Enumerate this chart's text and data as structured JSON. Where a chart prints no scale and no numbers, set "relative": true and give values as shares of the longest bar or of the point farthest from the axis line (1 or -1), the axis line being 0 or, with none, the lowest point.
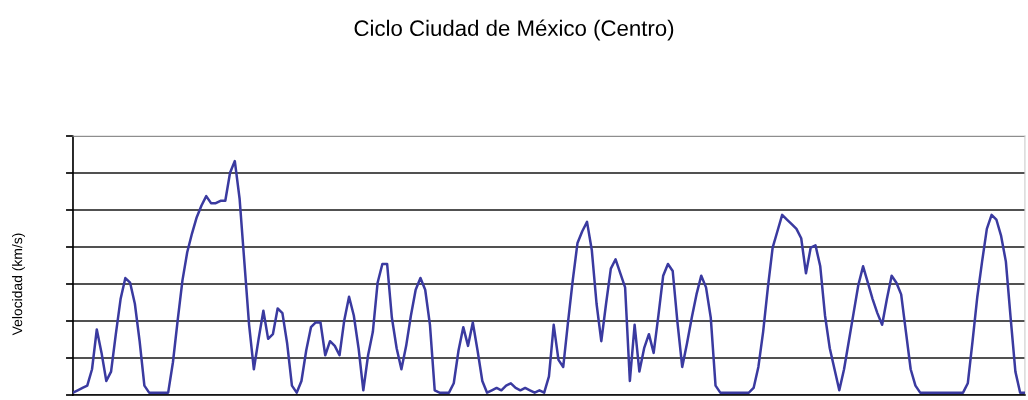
{
  "chart_data": {
    "type": "line",
    "title": "Ciclo Ciudad de México (Centro)",
    "ylabel": "Velocidad (km/s)",
    "relative": true,
    "grid": "y",
    "marker": "none",
    "line_style": "solid",
    "categories": [
      null,
      null,
      null,
      null,
      null,
      null,
      null,
      null,
      null,
      null,
      null,
      null,
      null,
      null,
      null,
      null,
      null,
      null,
      null,
      null,
      null,
      null,
      null,
      null,
      null,
      null,
      null,
      null,
      null,
      null,
      null,
      null,
      null,
      null,
      null,
      null,
      null,
      null,
      null,
      null,
      null,
      null,
      null,
      null,
      null,
      null,
      null,
      null,
      null,
      null,
      null,
      null,
      null,
      null,
      null,
      null,
      null,
      null,
      null,
      null,
      null,
      null,
      null,
      null,
      null,
      null,
      null,
      null,
      null,
      null,
      null,
      null,
      null,
      null,
      null,
      null,
      null,
      null,
      null,
      null,
      null,
      null,
      null,
      null,
      null,
      null,
      null,
      null,
      null,
      null,
      null,
      null,
      null,
      null,
      null,
      null,
      null,
      null,
      null,
      null,
      null,
      null,
      null,
      null,
      null,
      null,
      null,
      null,
      null,
      null,
      null,
      null,
      null,
      null,
      null,
      null,
      null,
      null,
      null,
      null,
      null,
      null,
      null,
      null,
      null,
      null,
      null,
      null,
      null,
      null,
      null,
      null,
      null,
      null,
      null,
      null,
      null,
      null,
      null,
      null,
      null,
      null,
      null,
      null,
      null,
      null,
      null,
      null,
      null,
      null,
      null,
      null,
      null,
      null,
      null,
      null,
      null,
      null,
      null,
      null,
      null,
      null,
      null,
      null,
      null,
      null,
      null,
      null,
      null,
      null,
      null,
      null,
      null,
      null,
      null,
      null,
      null,
      null,
      null,
      null,
      null,
      null,
      null,
      null,
      null,
      null,
      null,
      null,
      null,
      null,
      null,
      null,
      null,
      null,
      null,
      null,
      null,
      null,
      null,
      null,
      null
    ],
    "series": [
      {
        "color": "#3a3aa0",
        "values": [
          0.01,
          0.02,
          0.03,
          0.04,
          0.11,
          0.28,
          0.18,
          0.06,
          0.1,
          0.26,
          0.41,
          0.5,
          0.48,
          0.39,
          0.23,
          0.04,
          0.01,
          0.01,
          0.01,
          0.01,
          0.01,
          0.14,
          0.32,
          0.49,
          0.61,
          0.69,
          0.76,
          0.81,
          0.85,
          0.82,
          0.82,
          0.83,
          0.83,
          0.95,
          1.0,
          0.84,
          0.57,
          0.3,
          0.11,
          0.24,
          0.36,
          0.24,
          0.26,
          0.37,
          0.35,
          0.22,
          0.04,
          0.01,
          0.06,
          0.19,
          0.29,
          0.31,
          0.31,
          0.17,
          0.23,
          0.21,
          0.17,
          0.32,
          0.42,
          0.34,
          0.2,
          0.02,
          0.17,
          0.27,
          0.48,
          0.56,
          0.56,
          0.33,
          0.2,
          0.11,
          0.21,
          0.34,
          0.45,
          0.5,
          0.45,
          0.3,
          0.02,
          0.01,
          0.01,
          0.01,
          0.05,
          0.19,
          0.29,
          0.21,
          0.31,
          0.19,
          0.06,
          0.01,
          0.02,
          0.03,
          0.02,
          0.04,
          0.05,
          0.03,
          0.02,
          0.03,
          0.02,
          0.01,
          0.02,
          0.01,
          0.08,
          0.3,
          0.15,
          0.12,
          0.31,
          0.49,
          0.65,
          0.7,
          0.74,
          0.62,
          0.39,
          0.23,
          0.39,
          0.54,
          0.58,
          0.52,
          0.46,
          0.06,
          0.3,
          0.1,
          0.2,
          0.26,
          0.18,
          0.34,
          0.51,
          0.56,
          0.53,
          0.31,
          0.12,
          0.22,
          0.33,
          0.43,
          0.51,
          0.46,
          0.33,
          0.04,
          0.01,
          0.01,
          0.01,
          0.01,
          0.01,
          0.01,
          0.01,
          0.03,
          0.12,
          0.27,
          0.46,
          0.63,
          0.7,
          0.77,
          0.75,
          0.73,
          0.71,
          0.67,
          0.52,
          0.63,
          0.64,
          0.55,
          0.34,
          0.2,
          0.11,
          0.02,
          0.11,
          0.23,
          0.35,
          0.47,
          0.55,
          0.48,
          0.41,
          0.35,
          0.3,
          0.41,
          0.51,
          0.48,
          0.43,
          0.27,
          0.11,
          0.04,
          0.01,
          0.01,
          0.01,
          0.01,
          0.01,
          0.01,
          0.01,
          0.01,
          0.01,
          0.01,
          0.05,
          0.23,
          0.42,
          0.57,
          0.71,
          0.77,
          0.75,
          0.68,
          0.57,
          0.33,
          0.1,
          0.01,
          0.01
        ]
      }
    ]
  }
}
